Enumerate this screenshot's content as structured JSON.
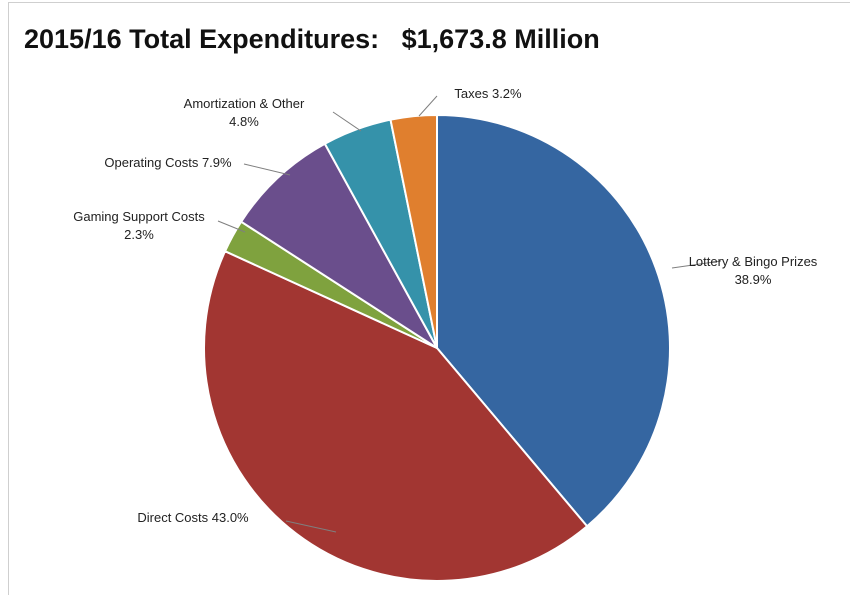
{
  "chart_data": {
    "type": "pie",
    "title": "2015/16 Total Expenditures:   $1,673.8 Million",
    "slices": [
      {
        "name": "Lottery & Bingo Prizes",
        "value_label": "38.9%",
        "value": 38.9,
        "color": "#3566A1"
      },
      {
        "name": "Direct Costs",
        "value_label": "43.0%",
        "value": 43.0,
        "color": "#A23632"
      },
      {
        "name": "Gaming Support Costs",
        "value_label": "2.3%",
        "value": 2.3,
        "color": "#7FA23E"
      },
      {
        "name": "Operating Costs",
        "value_label": "7.9%",
        "value": 7.9,
        "color": "#6A4E8C"
      },
      {
        "name": "Amortization & Other",
        "value_label": "4.8%",
        "value": 4.8,
        "color": "#3592AA"
      },
      {
        "name": "Taxes",
        "value_label": "3.2%",
        "value": 3.2,
        "color": "#E07F2E"
      }
    ],
    "label_texts": [
      [
        "Lottery & Bingo Prizes",
        "38.9%"
      ],
      [
        "Direct Costs 43.0%"
      ],
      [
        "Gaming Support Costs",
        "2.3%"
      ],
      [
        "Operating Costs 7.9%"
      ],
      [
        "Amortization & Other",
        "4.8%"
      ],
      [
        "Taxes 3.2%"
      ]
    ],
    "start_position": "top, clockwise",
    "legend": "none"
  }
}
